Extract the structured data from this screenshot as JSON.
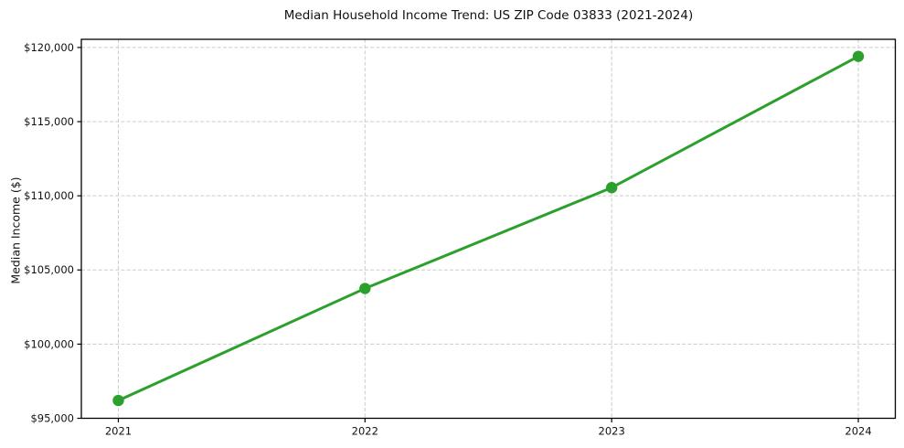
{
  "chart_data": {
    "type": "line",
    "title": "Median Household Income Trend: US ZIP Code 03833 (2021-2024)",
    "xlabel": "",
    "ylabel": "Median Income ($)",
    "x": [
      2021,
      2022,
      2023,
      2024
    ],
    "categories": [
      "2021",
      "2022",
      "2023",
      "2024"
    ],
    "values": [
      96200,
      103750,
      110550,
      119400
    ],
    "y_ticks": [
      95000,
      100000,
      105000,
      110000,
      115000,
      120000
    ],
    "y_tick_labels": [
      "$95,000",
      "$100,000",
      "$105,000",
      "$110,000",
      "$115,000",
      "$120,000"
    ],
    "xlim": [
      2020.85,
      2024.15
    ],
    "ylim": [
      95000,
      120550
    ],
    "grid": true,
    "grid_line_style": "dashed",
    "grid_color": "#cccccc",
    "line_color": "#2ca02c",
    "marker": "circle",
    "legend": "none",
    "background_color": "#ffffff",
    "frame_color": "#000000"
  }
}
